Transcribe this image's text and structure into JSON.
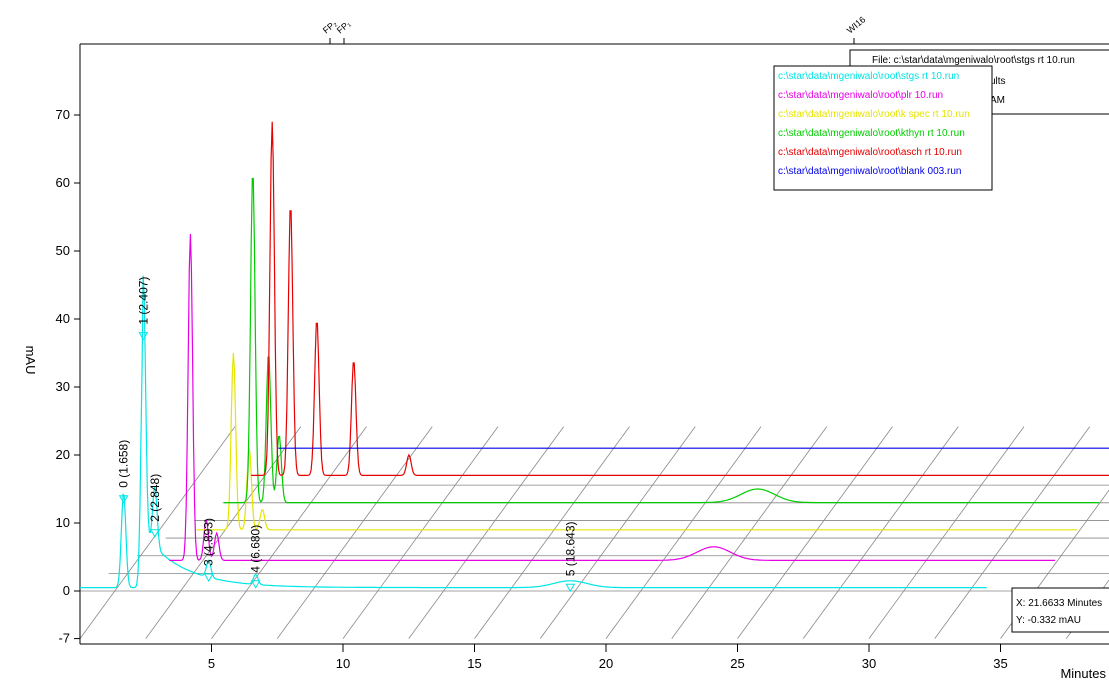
{
  "chart_data": {
    "type": "line",
    "ylabel": "mAU",
    "xlabel": "Minutes",
    "yticks": [
      -7,
      0,
      10,
      20,
      30,
      40,
      50,
      60,
      70
    ],
    "xticks": [
      5,
      10,
      15,
      20,
      25,
      30,
      35
    ],
    "top_markers": [
      "FP₂",
      "FP₁",
      "WI16"
    ],
    "file_box": {
      "line1": "File: c:\\star\\data\\mgeniwalo\\root\\stgs rt 10.run",
      "line2": "ults",
      "line3": "AM"
    },
    "legend": [
      {
        "name": "c:\\star\\data\\mgeniwalo\\root\\stgs rt 10.run",
        "color": "#00e5e5"
      },
      {
        "name": "c:\\star\\data\\mgeniwalo\\root\\plr 10.run",
        "color": "#e600e6"
      },
      {
        "name": "c:\\star\\data\\mgeniwalo\\root\\k spec rt 10.run",
        "color": "#e5e500"
      },
      {
        "name": "c:\\star\\data\\mgeniwalo\\root\\kthyn rt 10.run",
        "color": "#00cc00"
      },
      {
        "name": "c:\\star\\data\\mgeniwalo\\root\\asch rt 10.run",
        "color": "#e60000"
      },
      {
        "name": "c:\\star\\data\\mgeniwalo\\root\\blank 003.run",
        "color": "#0000e6"
      }
    ],
    "peak_labels": [
      "0 (1.658)",
      "1 (2.407)",
      "2 (2.848)",
      "3 (4.893)",
      "4 (6.680)",
      "5 (18.643)"
    ],
    "cursor": {
      "x": "X:  21.6633 Minutes",
      "y": "Y: -0.332 mAU"
    },
    "series": [
      {
        "name": "c:\\star\\data\\mgeniwalo\\root\\stgs rt 10.run",
        "baseline": 0.5,
        "peaks": [
          [
            1.658,
            14
          ],
          [
            2.407,
            38
          ],
          [
            2.848,
            9
          ],
          [
            4.893,
            2.5
          ],
          [
            6.68,
            1.5
          ],
          [
            18.643,
            1
          ]
        ]
      },
      {
        "name": "c:\\star\\data\\mgeniwalo\\root\\plr 10.run",
        "baseline": 4.5,
        "peaks": [
          [
            2.6,
            48
          ],
          [
            3.2,
            6
          ],
          [
            3.6,
            4
          ],
          [
            22.5,
            2
          ]
        ]
      },
      {
        "name": "c:\\star\\data\\mgeniwalo\\root\\k spec rt 10.run",
        "baseline": 9,
        "peaks": [
          [
            3.4,
            26
          ],
          [
            4.0,
            12
          ],
          [
            4.5,
            3
          ]
        ]
      },
      {
        "name": "c:\\star\\data\\mgeniwalo\\root\\kthyn rt 10.run",
        "baseline": 13,
        "peaks": [
          [
            3.3,
            49
          ],
          [
            3.9,
            22
          ],
          [
            4.3,
            10
          ],
          [
            22.5,
            2
          ]
        ]
      },
      {
        "name": "c:\\star\\data\\mgeniwalo\\root\\asch rt 10.run",
        "baseline": 17,
        "peaks": [
          [
            3.2,
            52
          ],
          [
            3.9,
            40
          ],
          [
            4.9,
            23
          ],
          [
            6.3,
            17
          ],
          [
            8.4,
            3
          ]
        ]
      },
      {
        "name": "c:\\star\\data\\mgeniwalo\\root\\blank 003.run",
        "baseline": 21,
        "peaks": []
      }
    ]
  }
}
